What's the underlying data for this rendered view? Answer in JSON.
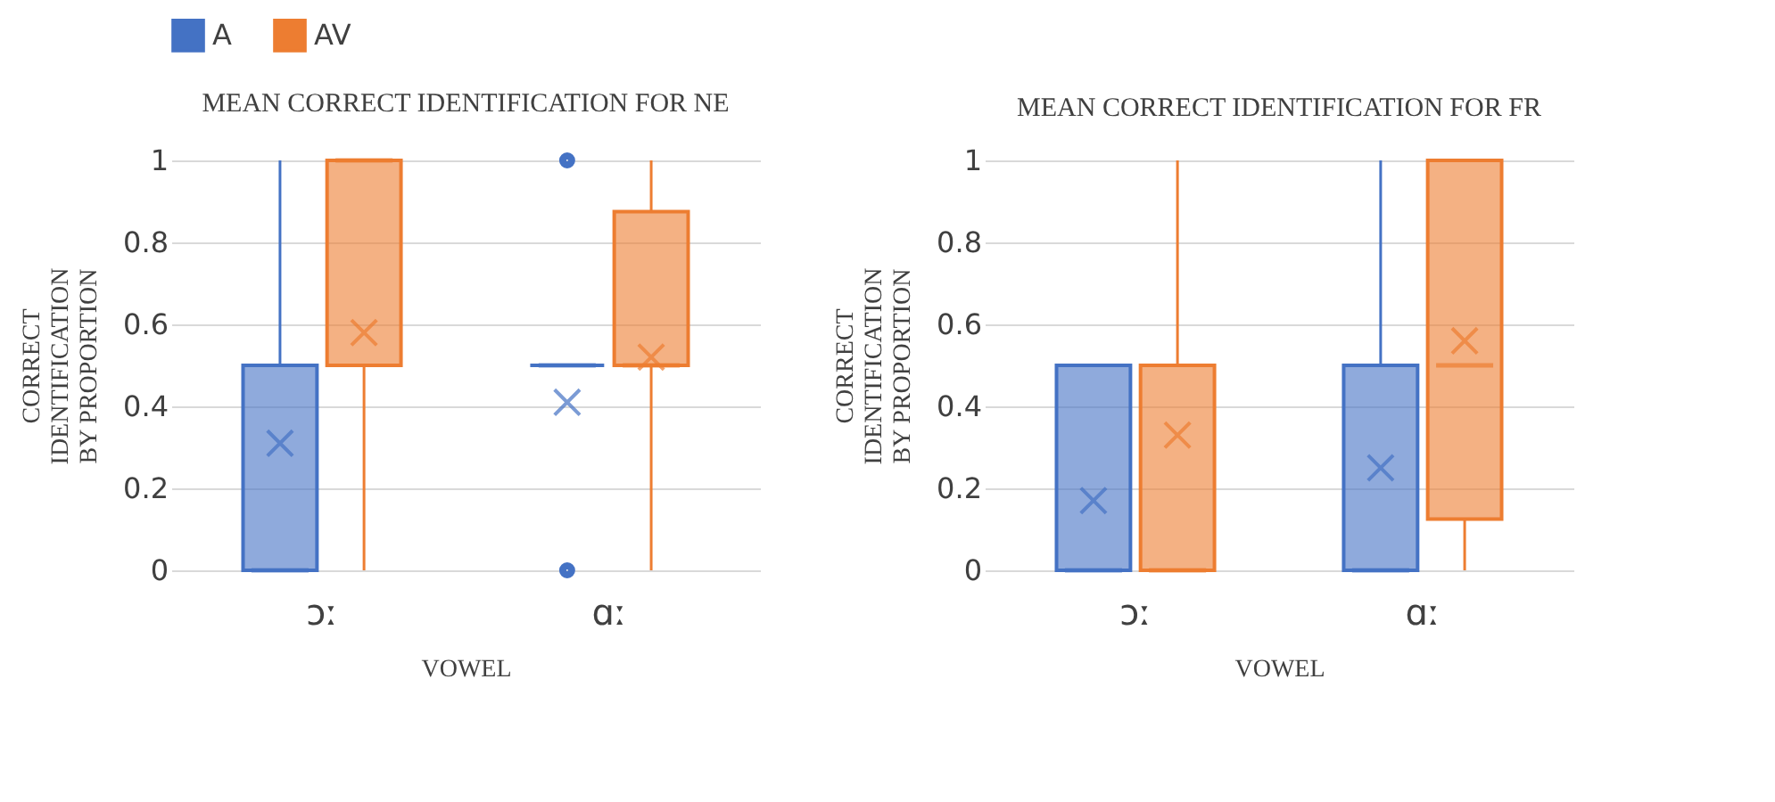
{
  "chart_data": [
    {
      "type": "box",
      "title": "MEAN CORRECT IDENTIFICATION FOR NE",
      "xlabel": "VOWEL",
      "ylabel": "CORRECT IDENTIFICATION BY PROPORTION",
      "categories": [
        "ɔː",
        "ɑː"
      ],
      "ylim": [
        0,
        1
      ],
      "yticks": [
        0,
        0.2,
        0.4,
        0.6,
        0.8,
        1
      ],
      "grid": "y",
      "legend": "top",
      "marker": "cross",
      "series": [
        {
          "name": "A",
          "color": "#4472c4",
          "boxes": [
            {
              "low": 0,
              "q1": 0,
              "median": 0,
              "q3": 0.5,
              "high": 1,
              "mean": 0.31
            },
            {
              "low": 0.5,
              "q1": 0.5,
              "median": 0.5,
              "q3": 0.5,
              "high": 0.5,
              "mean": 0.41,
              "outliers": [
                0,
                1
              ]
            }
          ]
        },
        {
          "name": "AV",
          "color": "#ed7d31",
          "boxes": [
            {
              "low": 0,
              "q1": 0.5,
              "median": 1,
              "q3": 1,
              "high": 1,
              "mean": 0.58
            },
            {
              "low": 0,
              "q1": 0.5,
              "median": 0.5,
              "q3": 0.875,
              "high": 1,
              "mean": 0.52
            }
          ]
        }
      ]
    },
    {
      "type": "box",
      "title": "MEAN CORRECT IDENTIFICATION FOR FR",
      "xlabel": "VOWEL",
      "ylabel": "CORRECT IDENTIFICATION BY PROPORTION",
      "categories": [
        "ɔː",
        "ɑː"
      ],
      "ylim": [
        0,
        1
      ],
      "yticks": [
        0,
        0.2,
        0.4,
        0.6,
        0.8,
        1
      ],
      "grid": "y",
      "legend": "top",
      "marker": "cross",
      "series": [
        {
          "name": "A",
          "color": "#4472c4",
          "boxes": [
            {
              "low": 0,
              "q1": 0,
              "median": 0,
              "q3": 0.5,
              "high": 0.5,
              "mean": 0.17
            },
            {
              "low": 0,
              "q1": 0,
              "median": 0,
              "q3": 0.5,
              "high": 1,
              "mean": 0.25
            }
          ]
        },
        {
          "name": "AV",
          "color": "#ed7d31",
          "boxes": [
            {
              "low": 0,
              "q1": 0,
              "median": 0,
              "q3": 0.5,
              "high": 1,
              "mean": 0.33
            },
            {
              "low": 0,
              "q1": 0.125,
              "median": 0.5,
              "q3": 1,
              "high": 1,
              "mean": 0.56
            }
          ]
        }
      ]
    }
  ]
}
